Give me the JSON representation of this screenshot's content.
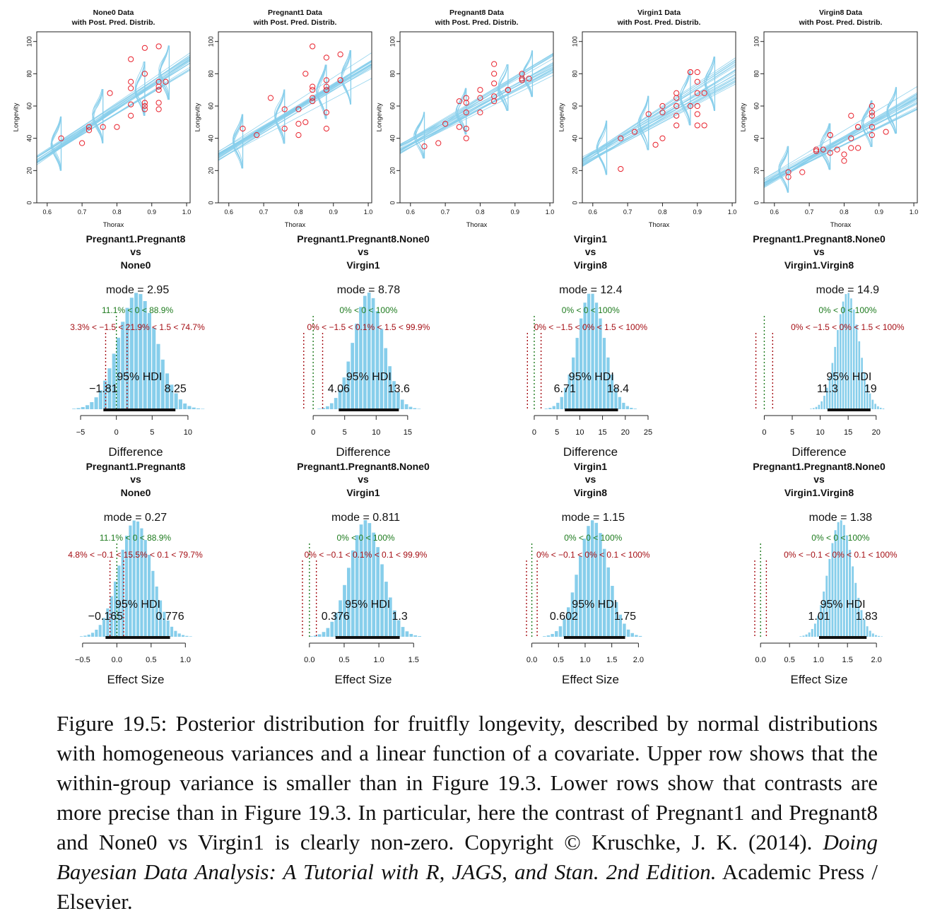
{
  "colors": {
    "lines": "#87ceeb",
    "points": "#e8212c",
    "hist": "#87ceeb",
    "green": "#1e7b1e",
    "red": "#a50f15",
    "hdi": "#111111"
  },
  "scatter_common": {
    "xlabel": "Thorax",
    "ylabel": "Longevity",
    "xticks": [
      "0.6",
      "0.7",
      "0.8",
      "0.9",
      "1.0"
    ],
    "yticks": [
      "0",
      "20",
      "40",
      "60",
      "80",
      "100"
    ],
    "xlim": [
      0.57,
      1.01
    ],
    "ylim": [
      0,
      106
    ]
  },
  "scatter_panels": [
    {
      "title1": "None0 Data",
      "title2": "with Post. Pred. Distrib.",
      "intercept_at_06": 31,
      "slope": 142,
      "spread": 3,
      "noise": 7,
      "points": [
        [
          0.64,
          40
        ],
        [
          0.7,
          37
        ],
        [
          0.72,
          45
        ],
        [
          0.72,
          47
        ],
        [
          0.76,
          47
        ],
        [
          0.78,
          68
        ],
        [
          0.8,
          47
        ],
        [
          0.84,
          89
        ],
        [
          0.84,
          75
        ],
        [
          0.84,
          71
        ],
        [
          0.84,
          61
        ],
        [
          0.84,
          54
        ],
        [
          0.88,
          96
        ],
        [
          0.88,
          80
        ],
        [
          0.88,
          62
        ],
        [
          0.88,
          60
        ],
        [
          0.88,
          58
        ],
        [
          0.92,
          97
        ],
        [
          0.92,
          75
        ],
        [
          0.92,
          72
        ],
        [
          0.92,
          70
        ],
        [
          0.92,
          62
        ],
        [
          0.92,
          58
        ],
        [
          0.94,
          75
        ]
      ]
    },
    {
      "title1": "Pregnant1 Data",
      "title2": "with Post. Pred. Distrib.",
      "intercept_at_06": 33,
      "slope": 128,
      "spread": 3,
      "noise": 7,
      "points": [
        [
          0.64,
          46
        ],
        [
          0.68,
          42
        ],
        [
          0.72,
          65
        ],
        [
          0.76,
          58
        ],
        [
          0.76,
          46
        ],
        [
          0.8,
          58
        ],
        [
          0.8,
          49
        ],
        [
          0.8,
          42
        ],
        [
          0.82,
          80
        ],
        [
          0.82,
          50
        ],
        [
          0.84,
          97
        ],
        [
          0.84,
          72
        ],
        [
          0.84,
          70
        ],
        [
          0.84,
          65
        ],
        [
          0.84,
          63
        ],
        [
          0.88,
          90
        ],
        [
          0.88,
          76
        ],
        [
          0.88,
          72
        ],
        [
          0.88,
          70
        ],
        [
          0.88,
          56
        ],
        [
          0.88,
          46
        ],
        [
          0.92,
          92
        ],
        [
          0.92,
          76
        ],
        [
          0.92,
          76
        ]
      ]
    },
    {
      "title1": "Pregnant8 Data",
      "title2": "with Post. Pred. Distrib.",
      "intercept_at_06": 37,
      "slope": 123,
      "spread": 3,
      "noise": 6,
      "points": [
        [
          0.64,
          35
        ],
        [
          0.68,
          37
        ],
        [
          0.7,
          49
        ],
        [
          0.74,
          63
        ],
        [
          0.74,
          47
        ],
        [
          0.76,
          65
        ],
        [
          0.76,
          62
        ],
        [
          0.76,
          56
        ],
        [
          0.76,
          46
        ],
        [
          0.76,
          40
        ],
        [
          0.8,
          70
        ],
        [
          0.8,
          65
        ],
        [
          0.8,
          56
        ],
        [
          0.84,
          86
        ],
        [
          0.84,
          80
        ],
        [
          0.84,
          74
        ],
        [
          0.84,
          66
        ],
        [
          0.84,
          63
        ],
        [
          0.88,
          70
        ],
        [
          0.88,
          70
        ],
        [
          0.92,
          80
        ],
        [
          0.92,
          77
        ],
        [
          0.94,
          77
        ],
        [
          0.92,
          76
        ]
      ]
    },
    {
      "title1": "Virgin1 Data",
      "title2": "with Post. Pred. Distrib.",
      "intercept_at_06": 29,
      "slope": 128,
      "spread": 3,
      "noise": 7,
      "points": [
        [
          0.68,
          40
        ],
        [
          0.68,
          21
        ],
        [
          0.72,
          44
        ],
        [
          0.76,
          55
        ],
        [
          0.78,
          36
        ],
        [
          0.8,
          60
        ],
        [
          0.8,
          56
        ],
        [
          0.8,
          40
        ],
        [
          0.84,
          68
        ],
        [
          0.84,
          65
        ],
        [
          0.84,
          60
        ],
        [
          0.84,
          54
        ],
        [
          0.84,
          48
        ],
        [
          0.88,
          81
        ],
        [
          0.88,
          81
        ],
        [
          0.88,
          60
        ],
        [
          0.9,
          81
        ],
        [
          0.9,
          75
        ],
        [
          0.9,
          68
        ],
        [
          0.9,
          60
        ],
        [
          0.9,
          55
        ],
        [
          0.9,
          48
        ],
        [
          0.92,
          68
        ],
        [
          0.92,
          48
        ]
      ]
    },
    {
      "title1": "Virgin8 Data",
      "title2": "with Post. Pred. Distrib.",
      "intercept_at_06": 16,
      "slope": 118,
      "spread": 3,
      "noise": 6,
      "points": [
        [
          0.64,
          19
        ],
        [
          0.64,
          16
        ],
        [
          0.68,
          19
        ],
        [
          0.72,
          32
        ],
        [
          0.72,
          33
        ],
        [
          0.74,
          33
        ],
        [
          0.76,
          42
        ],
        [
          0.76,
          42
        ],
        [
          0.76,
          31
        ],
        [
          0.78,
          33
        ],
        [
          0.8,
          30
        ],
        [
          0.8,
          26
        ],
        [
          0.82,
          40
        ],
        [
          0.82,
          34
        ],
        [
          0.82,
          54
        ],
        [
          0.84,
          47
        ],
        [
          0.84,
          47
        ],
        [
          0.84,
          34
        ],
        [
          0.88,
          60
        ],
        [
          0.88,
          56
        ],
        [
          0.88,
          54
        ],
        [
          0.88,
          47
        ],
        [
          0.88,
          42
        ],
        [
          0.92,
          44
        ]
      ]
    }
  ],
  "diff_panels": [
    {
      "label1": "Pregnant1.Pregnant8",
      "label2": "vs",
      "label3": "None0",
      "mode_text": "mode = 2.95",
      "rope0_text": "11.1% < 0 < 88.9%",
      "rope_text": "3.3% < −1.5 < 21.9% < 1.5 < 74.7%",
      "hdi_label": "95% HDI",
      "hdi_lo_text": "−1.81",
      "hdi_hi_text": "8.25",
      "xlabel": "Difference",
      "xlim": [
        -5.2,
        10.6
      ],
      "xticks": [
        -5,
        0,
        5,
        10
      ],
      "xticklabels": [
        "−5",
        "0",
        "5",
        "10"
      ],
      "mode": 2.95,
      "sd": 2.7,
      "hdi": [
        -1.81,
        8.25
      ],
      "rope": [
        -1.5,
        1.5
      ],
      "zero": 0,
      "binw": 0.62
    },
    {
      "label1": "Pregnant1.Pregnant8.None0",
      "label2": "vs",
      "label3": "Virgin1",
      "mode_text": "mode = 8.78",
      "rope0_text": "0% < 0 < 100%",
      "rope_text": "0% < −1.5 < 0.1% < 1.5 < 99.9%",
      "hdi_label": "95% HDI",
      "hdi_lo_text": "4.06",
      "hdi_hi_text": "13.6",
      "xlabel": "Difference",
      "xlim": [
        -1.7,
        17.6
      ],
      "xticks": [
        0,
        5,
        10,
        15
      ],
      "xticklabels": [
        "0",
        "5",
        "10",
        "15"
      ],
      "mode": 8.78,
      "sd": 2.4,
      "hdi": [
        4.06,
        13.6
      ],
      "rope": [
        -1.5,
        1.5
      ],
      "zero": 0,
      "binw": 0.66
    },
    {
      "label1": "Virgin1",
      "label2": "vs",
      "label3": "Virgin8",
      "mode_text": "mode = 12.4",
      "rope0_text": "0% < 0 < 100%",
      "rope_text": "0% < −1.5 < 0% < 1.5 < 100%",
      "hdi_label": "95% HDI",
      "hdi_lo_text": "6.71",
      "hdi_hi_text": "18.4",
      "xlabel": "Difference",
      "xlim": [
        -1.7,
        26.4
      ],
      "xticks": [
        0,
        5,
        10,
        15,
        20,
        25
      ],
      "xticklabels": [
        "0",
        "5",
        "10",
        "15",
        "20",
        "25"
      ],
      "mode": 12.4,
      "sd": 3.0,
      "hdi": [
        6.71,
        18.4
      ],
      "rope": [
        -1.5,
        1.5
      ],
      "zero": 0,
      "binw": 0.85
    },
    {
      "label1": "Pregnant1.Pregnant8.None0",
      "label2": "vs",
      "label3": "Virgin1.Virgin8",
      "mode_text": "mode = 14.9",
      "rope0_text": "0% < 0 < 100%",
      "rope_text": "0% < −1.5 < 0% < 1.5 < 100%",
      "hdi_label": "95% HDI",
      "hdi_lo_text": "11.3",
      "hdi_hi_text": "19",
      "xlabel": "Difference",
      "xlim": [
        -1.7,
        21.3
      ],
      "xticks": [
        0,
        5,
        10,
        15,
        20
      ],
      "xticklabels": [
        "0",
        "5",
        "10",
        "15",
        "20"
      ],
      "mode": 14.9,
      "sd": 2.0,
      "hdi": [
        11.3,
        19
      ],
      "rope": [
        -1.5,
        1.5
      ],
      "zero": 0,
      "binw": 0.48
    }
  ],
  "effect_panels": [
    {
      "label1": "Pregnant1.Pregnant8",
      "label2": "vs",
      "label3": "None0",
      "mode_text": "mode = 0.27",
      "rope0_text": "11.1% < 0 < 88.9%",
      "rope_text": "4.8% < −0.1 < 15.5% < 0.1 < 79.7%",
      "hdi_label": "95% HDI",
      "hdi_lo_text": "−0.165",
      "hdi_hi_text": "0.776",
      "xlabel": "Effect Size",
      "xlim": [
        -0.55,
        1.1
      ],
      "xticks": [
        -0.5,
        0,
        0.5,
        1
      ],
      "xticklabels": [
        "−0.5",
        "0.0",
        "0.5",
        "1.0"
      ],
      "mode": 0.27,
      "sd": 0.24,
      "hdi": [
        -0.165,
        0.776
      ],
      "rope": [
        -0.1,
        0.1
      ],
      "zero": 0,
      "binw": 0.055
    },
    {
      "label1": "Pregnant1.Pregnant8.None0",
      "label2": "vs",
      "label3": "Virgin1",
      "mode_text": "mode = 0.811",
      "rope0_text": "0% < 0 < 100%",
      "rope_text": "0% < −0.1 < 0.1% < 0.1 < 99.9%",
      "hdi_label": "95% HDI",
      "hdi_lo_text": "0.376",
      "hdi_hi_text": "1.3",
      "xlabel": "Effect Size",
      "xlim": [
        -0.1,
        1.65
      ],
      "xticks": [
        0,
        0.5,
        1,
        1.5
      ],
      "xticklabels": [
        "0.0",
        "0.5",
        "1.0",
        "1.5"
      ],
      "mode": 0.811,
      "sd": 0.24,
      "hdi": [
        0.376,
        1.3
      ],
      "rope": [
        -0.1,
        0.1
      ],
      "zero": 0,
      "binw": 0.06
    },
    {
      "label1": "Virgin1",
      "label2": "vs",
      "label3": "Virgin8",
      "mode_text": "mode = 1.15",
      "rope0_text": "0% < 0 < 100%",
      "rope_text": "0% < −0.1 < 0% < 0.1 < 100%",
      "hdi_label": "95% HDI",
      "hdi_lo_text": "0.602",
      "hdi_hi_text": "1.75",
      "xlabel": "Effect Size",
      "xlim": [
        -0.1,
        2.3
      ],
      "xticks": [
        0,
        0.5,
        1,
        1.5,
        2
      ],
      "xticklabels": [
        "0.0",
        "0.5",
        "1.0",
        "1.5",
        "2.0"
      ],
      "mode": 1.15,
      "sd": 0.28,
      "hdi": [
        0.602,
        1.75
      ],
      "rope": [
        -0.1,
        0.1
      ],
      "zero": 0,
      "binw": 0.075
    },
    {
      "label1": "Pregnant1.Pregnant8.None0",
      "label2": "vs",
      "label3": "Virgin1.Virgin8",
      "mode_text": "mode = 1.38",
      "rope0_text": "0% < 0 < 100%",
      "rope_text": "0% < −0.1 < 0% < 0.1 < 100%",
      "hdi_label": "95% HDI",
      "hdi_lo_text": "1.01",
      "hdi_hi_text": "1.83",
      "xlabel": "Effect Size",
      "xlim": [
        -0.1,
        2.12
      ],
      "xticks": [
        0,
        0.5,
        1,
        1.5,
        2
      ],
      "xticklabels": [
        "0.0",
        "0.5",
        "1.0",
        "1.5",
        "2.0"
      ],
      "mode": 1.38,
      "sd": 0.21,
      "hdi": [
        1.01,
        1.83
      ],
      "rope": [
        -0.1,
        0.1
      ],
      "zero": 0,
      "binw": 0.05
    }
  ],
  "chart_data": [
    {
      "type": "scatter",
      "title": "None0 Data with Post. Pred. Distrib.",
      "xlabel": "Thorax",
      "ylabel": "Longevity",
      "xlim": [
        0.6,
        1.0
      ],
      "ylim": [
        0,
        100
      ]
    },
    {
      "type": "scatter",
      "title": "Pregnant1 Data with Post. Pred. Distrib.",
      "xlabel": "Thorax",
      "ylabel": "Longevity",
      "xlim": [
        0.6,
        1.0
      ],
      "ylim": [
        0,
        100
      ]
    },
    {
      "type": "scatter",
      "title": "Pregnant8 Data with Post. Pred. Distrib.",
      "xlabel": "Thorax",
      "ylabel": "Longevity",
      "xlim": [
        0.6,
        1.0
      ],
      "ylim": [
        0,
        100
      ]
    },
    {
      "type": "scatter",
      "title": "Virgin1 Data with Post. Pred. Distrib.",
      "xlabel": "Thorax",
      "ylabel": "Longevity",
      "xlim": [
        0.6,
        1.0
      ],
      "ylim": [
        0,
        100
      ]
    },
    {
      "type": "scatter",
      "title": "Virgin8 Data with Post. Pred. Distrib.",
      "xlabel": "Thorax",
      "ylabel": "Longevity",
      "xlim": [
        0.6,
        1.0
      ],
      "ylim": [
        0,
        100
      ]
    },
    {
      "type": "bar",
      "title": "Pregnant1.Pregnant8 vs None0",
      "xlabel": "Difference",
      "mode": 2.95,
      "hdi": [
        -1.81,
        8.25
      ]
    },
    {
      "type": "bar",
      "title": "Pregnant1.Pregnant8.None0 vs Virgin1",
      "xlabel": "Difference",
      "mode": 8.78,
      "hdi": [
        4.06,
        13.6
      ]
    },
    {
      "type": "bar",
      "title": "Virgin1 vs Virgin8",
      "xlabel": "Difference",
      "mode": 12.4,
      "hdi": [
        6.71,
        18.4
      ]
    },
    {
      "type": "bar",
      "title": "Pregnant1.Pregnant8.None0 vs Virgin1.Virgin8",
      "xlabel": "Difference",
      "mode": 14.9,
      "hdi": [
        11.3,
        19
      ]
    },
    {
      "type": "bar",
      "title": "Pregnant1.Pregnant8 vs None0",
      "xlabel": "Effect Size",
      "mode": 0.27,
      "hdi": [
        -0.165,
        0.776
      ]
    },
    {
      "type": "bar",
      "title": "Pregnant1.Pregnant8.None0 vs Virgin1",
      "xlabel": "Effect Size",
      "mode": 0.811,
      "hdi": [
        0.376,
        1.3
      ]
    },
    {
      "type": "bar",
      "title": "Virgin1 vs Virgin8",
      "xlabel": "Effect Size",
      "mode": 1.15,
      "hdi": [
        0.602,
        1.75
      ]
    },
    {
      "type": "bar",
      "title": "Pregnant1.Pregnant8.None0 vs Virgin1.Virgin8",
      "xlabel": "Effect Size",
      "mode": 1.38,
      "hdi": [
        1.01,
        1.83
      ]
    }
  ],
  "caption": {
    "main": "Figure 19.5: Posterior distribution for fruitfly longevity, described by normal distributions with homogeneous variances and a linear function of a covariate. Upper row shows that the within-group variance is smaller than in Figure 19.3. Lower rows show that contrasts are more precise than in Figure 19.3. In particular, here the contrast of Pregnant1 and Pregnant8 and None0 vs Virgin1 is clearly non-zero.",
    "copyright": "Copyright © Kruschke, J. K. (2014).",
    "book": "Doing Bayesian Data Analysis: A Tutorial with R, JAGS, and Stan. 2nd Edition.",
    "publisher": "Academic Press / Elsevier."
  }
}
